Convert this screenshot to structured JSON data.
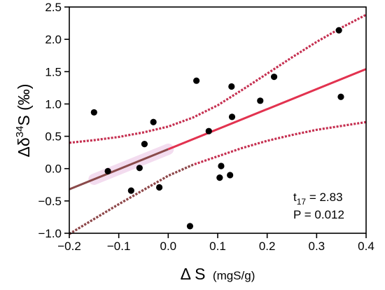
{
  "chart_data": {
    "type": "scatter",
    "xlabel_main": "Δ S",
    "xlabel_unit": "(mgS/g)",
    "ylabel_delta": "Δδ",
    "ylabel_sup": "34",
    "ylabel_rest": "S (‰)",
    "xlim": [
      -0.2,
      0.4
    ],
    "ylim": [
      -1.0,
      2.5
    ],
    "x_ticks": [
      -0.2,
      -0.1,
      0.0,
      0.1,
      0.2,
      0.3,
      0.4
    ],
    "x_tick_labels": [
      "−0.2",
      "−0.1",
      "0.0",
      "0.1",
      "0.2",
      "0.3",
      "0.4"
    ],
    "y_ticks": [
      -1.0,
      -0.5,
      0.0,
      0.5,
      1.0,
      1.5,
      2.0,
      2.5
    ],
    "y_tick_labels": [
      "−1.0",
      "−0.5",
      "0.0",
      "0.5",
      "1.0",
      "1.5",
      "2.0",
      "2.5"
    ],
    "points": [
      {
        "x": -0.15,
        "y": 0.87
      },
      {
        "x": -0.122,
        "y": -0.04
      },
      {
        "x": -0.075,
        "y": -0.34
      },
      {
        "x": -0.058,
        "y": 0.01
      },
      {
        "x": -0.048,
        "y": 0.38
      },
      {
        "x": -0.03,
        "y": 0.72
      },
      {
        "x": -0.018,
        "y": -0.29
      },
      {
        "x": 0.044,
        "y": -0.89
      },
      {
        "x": 0.057,
        "y": 1.36
      },
      {
        "x": 0.082,
        "y": 0.58
      },
      {
        "x": 0.104,
        "y": -0.14
      },
      {
        "x": 0.107,
        "y": 0.04
      },
      {
        "x": 0.125,
        "y": -0.1
      },
      {
        "x": 0.128,
        "y": 1.27
      },
      {
        "x": 0.129,
        "y": 0.8
      },
      {
        "x": 0.186,
        "y": 1.05
      },
      {
        "x": 0.214,
        "y": 1.42
      },
      {
        "x": 0.345,
        "y": 2.14
      },
      {
        "x": 0.349,
        "y": 1.11
      }
    ],
    "fit_line": {
      "x": [
        -0.2,
        0.4
      ],
      "y": [
        -0.32,
        1.54
      ]
    },
    "ci_upper": {
      "x": [
        -0.2,
        -0.15,
        -0.1,
        -0.05,
        0.0,
        0.05,
        0.1,
        0.15,
        0.2,
        0.25,
        0.3,
        0.35,
        0.4
      ],
      "y": [
        0.4,
        0.44,
        0.49,
        0.56,
        0.65,
        0.79,
        0.98,
        1.22,
        1.47,
        1.72,
        1.96,
        2.18,
        2.38
      ]
    },
    "ci_lower": {
      "x": [
        -0.2,
        -0.15,
        -0.1,
        -0.05,
        0.0,
        0.05,
        0.1,
        0.15,
        0.2,
        0.25,
        0.3,
        0.35,
        0.4
      ],
      "y": [
        -1.02,
        -0.78,
        -0.55,
        -0.33,
        -0.11,
        0.06,
        0.19,
        0.32,
        0.43,
        0.52,
        0.6,
        0.66,
        0.72
      ]
    },
    "colors": {
      "fit_line": "#e2324f",
      "fit_line_overlap": "#8a4a4a",
      "ci_band": "#c52f50",
      "points": "#000000",
      "highlight": "#f3dcef"
    },
    "stats": {
      "t_prefix": "t",
      "t_sub": "17",
      "t_rest": " = 2.83",
      "p_line": "P = 0.012"
    }
  }
}
